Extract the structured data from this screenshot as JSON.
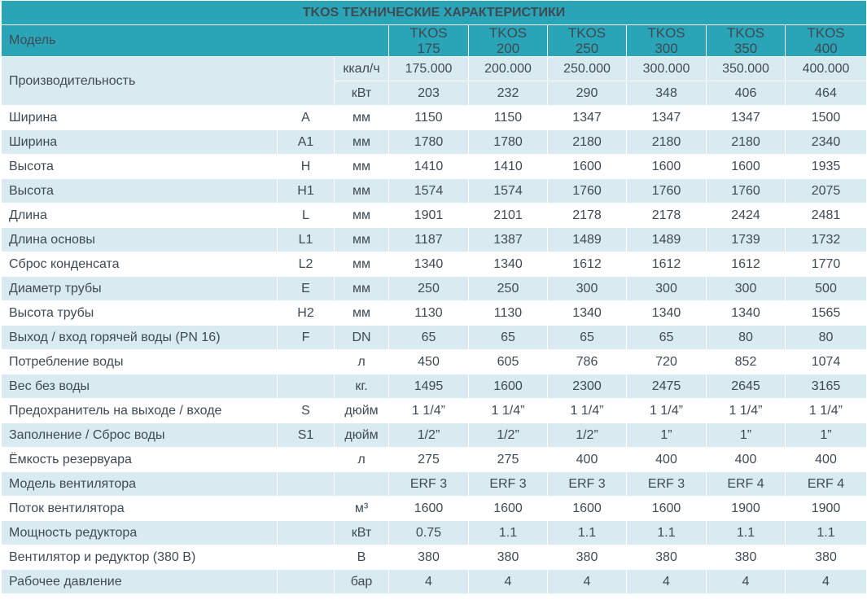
{
  "title": "TKOS ТЕХНИЧЕСКИЕ ХАРАКТЕРИСТИКИ",
  "model_label": "Модель",
  "models": [
    {
      "line1": "TKOS",
      "line2": "175"
    },
    {
      "line1": "TKOS",
      "line2": "200"
    },
    {
      "line1": "TKOS",
      "line2": "250"
    },
    {
      "line1": "TKOS",
      "line2": "300"
    },
    {
      "line1": "TKOS",
      "line2": "350"
    },
    {
      "line1": "TKOS",
      "line2": "400"
    }
  ],
  "performance": {
    "label": "Производительность",
    "rows": [
      {
        "unit": "ккал/ч",
        "values": [
          "175.000",
          "200.000",
          "250.000",
          "300.000",
          "350.000",
          "400.000"
        ]
      },
      {
        "unit": "кВт",
        "values": [
          "203",
          "232",
          "290",
          "348",
          "406",
          "464"
        ]
      }
    ]
  },
  "rows": [
    {
      "param": "Ширина",
      "sym": "A",
      "unit": "мм",
      "values": [
        "1150",
        "1150",
        "1347",
        "1347",
        "1347",
        "1500"
      ]
    },
    {
      "param": "Ширина",
      "sym": "A1",
      "unit": "мм",
      "values": [
        "1780",
        "1780",
        "2180",
        "2180",
        "2180",
        "2340"
      ]
    },
    {
      "param": "Высота",
      "sym": "H",
      "unit": "мм",
      "values": [
        "1410",
        "1410",
        "1600",
        "1600",
        "1600",
        "1935"
      ]
    },
    {
      "param": "Высота",
      "sym": "H1",
      "unit": "мм",
      "values": [
        "1574",
        "1574",
        "1760",
        "1760",
        "1760",
        "2075"
      ]
    },
    {
      "param": "Длина",
      "sym": "L",
      "unit": "мм",
      "values": [
        "1901",
        "2101",
        "2178",
        "2178",
        "2424",
        "2481"
      ]
    },
    {
      "param": "Длина основы",
      "sym": "L1",
      "unit": "мм",
      "values": [
        "1187",
        "1387",
        "1489",
        "1489",
        "1739",
        "1732"
      ]
    },
    {
      "param": "Сброс конденсата",
      "sym": "L2",
      "unit": "мм",
      "values": [
        "1340",
        "1340",
        "1612",
        "1612",
        "1612",
        "1770"
      ]
    },
    {
      "param": "Диаметр трубы",
      "sym": "E",
      "unit": "мм",
      "values": [
        "250",
        "250",
        "300",
        "300",
        "300",
        "500"
      ]
    },
    {
      "param": "Высота трубы",
      "sym": "H2",
      "unit": "мм",
      "values": [
        "1130",
        "1130",
        "1340",
        "1340",
        "1340",
        "1565"
      ]
    },
    {
      "param": "Выход / вход горячей воды (PN 16)",
      "sym": "F",
      "unit": "DN",
      "values": [
        "65",
        "65",
        "65",
        "65",
        "80",
        "80"
      ]
    },
    {
      "param": "Потребление воды",
      "sym": "",
      "unit": "л",
      "values": [
        "450",
        "605",
        "786",
        "720",
        "852",
        "1074"
      ]
    },
    {
      "param": "Вес без воды",
      "sym": "",
      "unit": "кг.",
      "values": [
        "1495",
        "1600",
        "2300",
        "2475",
        "2645",
        "3165"
      ]
    },
    {
      "param": "Предохранитель на выходе / входе",
      "sym": "S",
      "unit": "дюйм",
      "values": [
        "1 1/4”",
        "1 1/4”",
        "1 1/4”",
        "1 1/4”",
        "1 1/4”",
        "1 1/4”"
      ]
    },
    {
      "param": "Заполнение / Сброс воды",
      "sym": "S1",
      "unit": "дюйм",
      "values": [
        "1/2”",
        "1/2”",
        "1/2”",
        "1”",
        "1”",
        "1”"
      ]
    },
    {
      "param": "Ёмкость резервуара",
      "sym": "",
      "unit": "л",
      "values": [
        "275",
        "275",
        "400",
        "400",
        "400",
        "400"
      ]
    },
    {
      "param": "Модель вентилятора",
      "sym": "",
      "unit": "",
      "values": [
        "ERF 3",
        "ERF 3",
        "ERF 3",
        "ERF 3",
        "ERF 4",
        "ERF 4"
      ]
    },
    {
      "param": "Поток вентилятора",
      "sym": "",
      "unit": "м³",
      "values": [
        "1600",
        "1600",
        "1600",
        "1600",
        "1900",
        "1900"
      ]
    },
    {
      "param": "Мощность редуктора",
      "sym": "",
      "unit": "кВт",
      "values": [
        "0.75",
        "1.1",
        "1.1",
        "1.1",
        "1.1",
        "1.1"
      ]
    },
    {
      "param": "Вентилятор и редуктор (380 В)",
      "sym": "",
      "unit": "В",
      "values": [
        "380",
        "380",
        "380",
        "380",
        "380",
        "380"
      ]
    },
    {
      "param": "Рабочее давление",
      "sym": "",
      "unit": "бар",
      "values": [
        "4",
        "4",
        "4",
        "4",
        "4",
        "4"
      ]
    }
  ]
}
